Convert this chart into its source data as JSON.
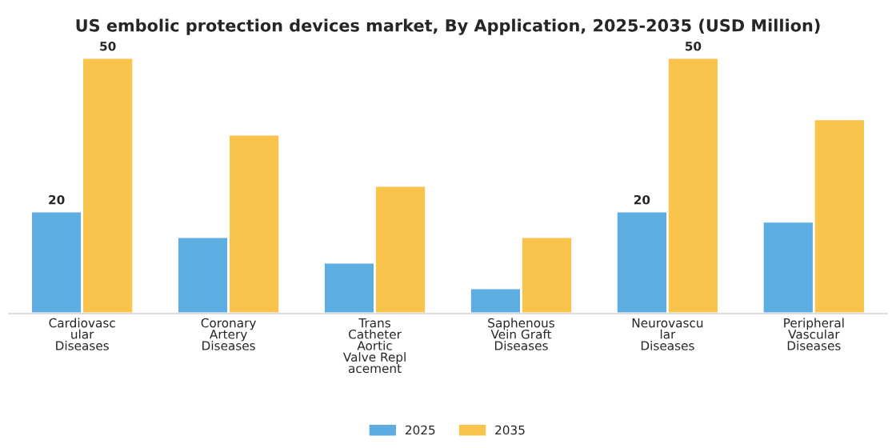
{
  "chart_data": {
    "type": "bar",
    "title": "US embolic protection devices market, By Application, 2025-2035 (USD Million)",
    "categories": [
      "Cardiovasc\nular\nDiseases",
      "Coronary\nArtery\nDiseases",
      "Trans\nCatheter\nAortic\nValve Repl\nacement",
      "Saphenous\nVein Graft\nDiseases",
      "Neurovascu\nlar\nDiseases",
      "Peripheral\nVascular\nDiseases"
    ],
    "series": [
      {
        "name": "2025",
        "color": "#5dade2",
        "values": [
          20,
          15,
          10,
          5,
          20,
          18
        ],
        "value_labels": [
          "20",
          null,
          null,
          null,
          "20",
          null
        ]
      },
      {
        "name": "2035",
        "color": "#f9c44b",
        "values": [
          50,
          35,
          25,
          15,
          50,
          38
        ],
        "value_labels": [
          "50",
          null,
          null,
          null,
          "50",
          null
        ]
      }
    ],
    "legend": "bottom",
    "grid": false,
    "tick_labels": "x"
  }
}
